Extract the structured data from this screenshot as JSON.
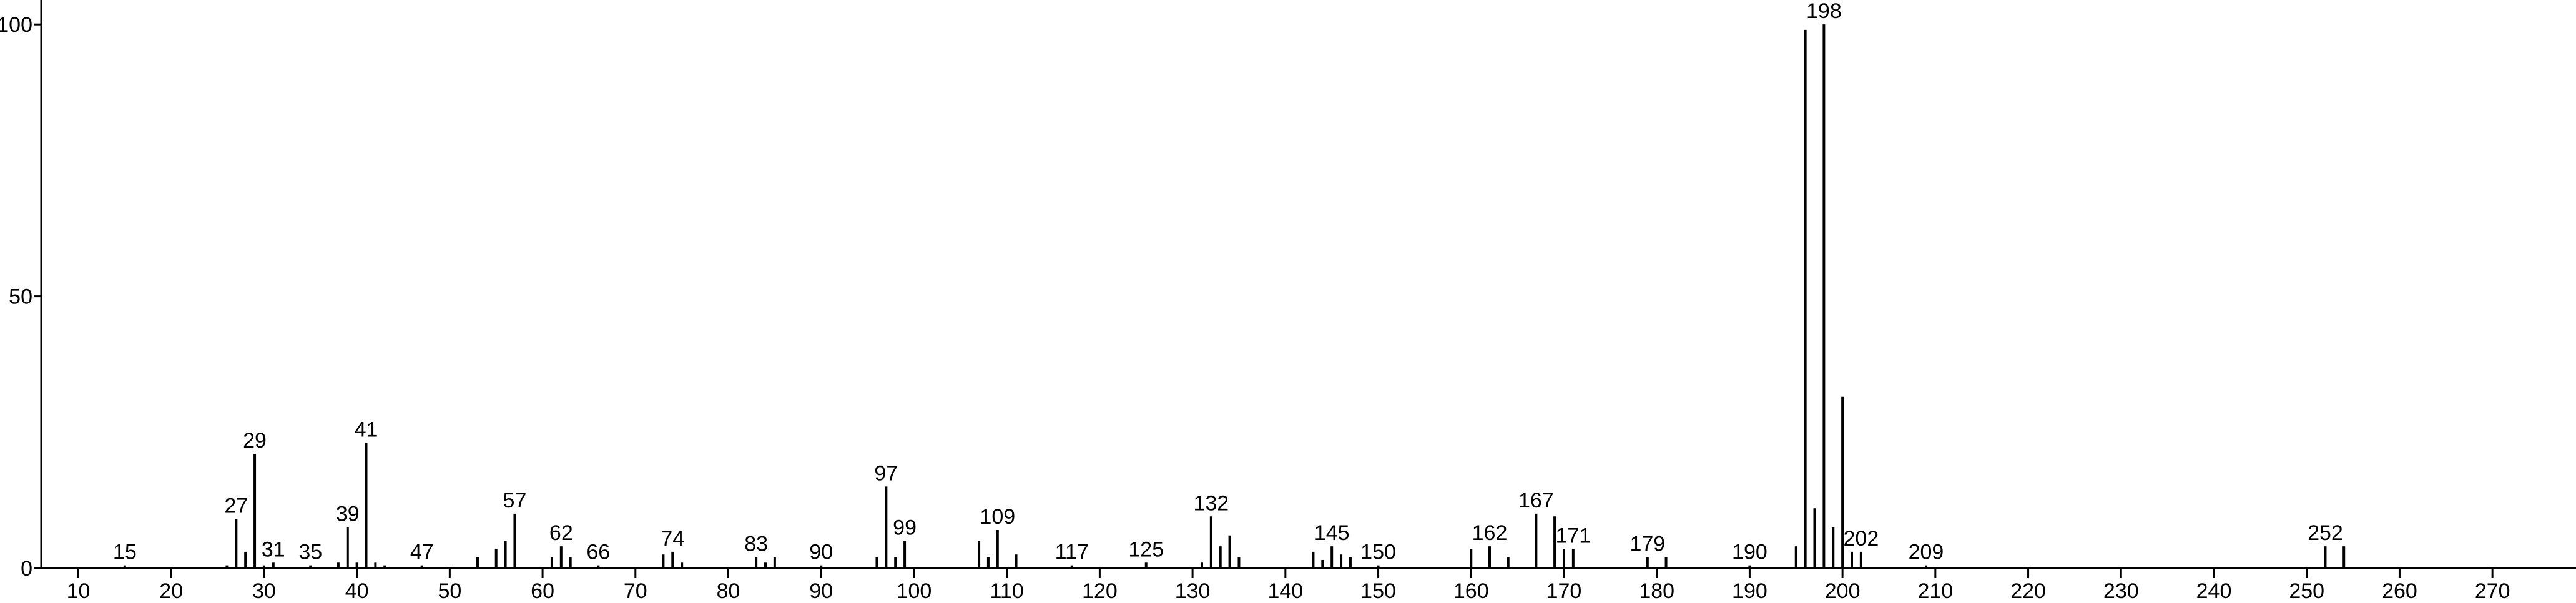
{
  "chart_data": {
    "type": "stick",
    "x": [
      15,
      26,
      27,
      28,
      29,
      30,
      31,
      35,
      38,
      39,
      40,
      41,
      42,
      43,
      47,
      53,
      55,
      56,
      57,
      61,
      62,
      63,
      66,
      73,
      74,
      75,
      83,
      84,
      85,
      90,
      96,
      97,
      98,
      99,
      107,
      108,
      109,
      111,
      117,
      125,
      131,
      132,
      133,
      134,
      135,
      143,
      144,
      145,
      146,
      147,
      150,
      160,
      162,
      164,
      167,
      169,
      170,
      171,
      179,
      181,
      190,
      195,
      196,
      197,
      198,
      199,
      200,
      201,
      202,
      209,
      252,
      254
    ],
    "values": [
      0.5,
      0.5,
      9,
      3,
      21,
      0.5,
      1,
      0.5,
      1,
      7.5,
      1,
      23,
      1,
      0.5,
      0.5,
      2,
      3.5,
      5,
      10,
      2,
      4,
      2,
      0.5,
      2.5,
      3,
      1,
      2,
      1,
      2,
      0.5,
      2,
      15,
      2,
      5,
      5,
      2,
      7,
      2.5,
      0.5,
      1,
      1,
      9.5,
      4,
      6,
      2,
      3,
      1.5,
      4,
      2.5,
      2,
      0.5,
      3.5,
      4,
      2,
      10,
      9.5,
      3.5,
      3.5,
      2,
      2,
      0.5,
      4,
      99,
      11,
      100,
      7.5,
      31.5,
      3,
      3,
      0.5,
      4,
      4
    ],
    "peak_labels": [
      15,
      27,
      29,
      31,
      35,
      39,
      41,
      47,
      57,
      62,
      66,
      74,
      83,
      90,
      97,
      99,
      109,
      117,
      125,
      132,
      145,
      150,
      162,
      167,
      171,
      179,
      190,
      198,
      202,
      209,
      252
    ],
    "color": "#000000",
    "xlim": [
      6,
      279
    ],
    "ylim": [
      0,
      104.5
    ],
    "xticks": [
      10,
      20,
      30,
      40,
      50,
      60,
      70,
      80,
      90,
      100,
      110,
      120,
      130,
      140,
      150,
      160,
      170,
      180,
      190,
      200,
      210,
      220,
      230,
      240,
      250,
      260,
      270
    ],
    "yticks": [
      0,
      50,
      100
    ]
  }
}
